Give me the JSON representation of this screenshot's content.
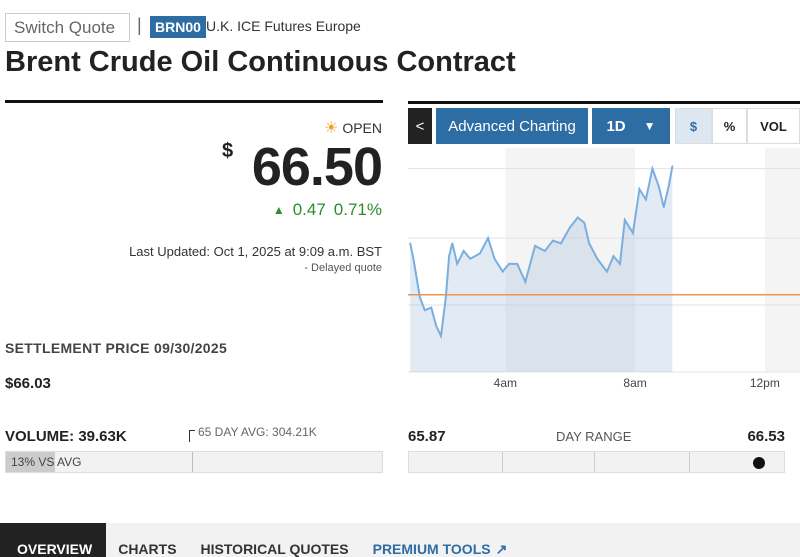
{
  "header": {
    "switch_quote_placeholder": "Switch Quote",
    "separator": "|",
    "symbol": "BRN00",
    "exchange": "U.K. ICE Futures Europe",
    "title": "Brent Crude Oil Continuous Contract"
  },
  "quote": {
    "status": "OPEN",
    "status_icon": "sun-icon",
    "currency": "$",
    "price": "66.50",
    "change": "0.47",
    "change_pct": "0.71%",
    "change_direction": "up",
    "last_updated": "Last Updated: Oct 1, 2025 at 9:09 a.m. BST",
    "delayed": "- Delayed quote",
    "settlement_label": "SETTLEMENT PRICE 09/30/2025",
    "settlement_value": "$66.03",
    "colors": {
      "positive": "#2e8b2e",
      "accent": "#2e6da4"
    }
  },
  "volume": {
    "label": "VOLUME: 39.63K",
    "avg_label": "65 DAY AVG: 304.21K",
    "vs_avg": "13% VS AVG",
    "vs_avg_fraction": 0.13
  },
  "day_range": {
    "low": "65.87",
    "label": "DAY RANGE",
    "high": "66.53",
    "current_fraction": 0.96
  },
  "chart_controls": {
    "back": "<",
    "advanced": "Advanced Charting",
    "range": "1D",
    "toggles": [
      "$",
      "%",
      "VOL"
    ],
    "active_toggle": "$"
  },
  "tabs": [
    {
      "label": "OVERVIEW",
      "active": true
    },
    {
      "label": "CHARTS"
    },
    {
      "label": "HISTORICAL QUOTES"
    },
    {
      "label": "PREMIUM TOOLS",
      "icon": "external-link-icon"
    }
  ],
  "chart_data": {
    "type": "line",
    "xlabel": "",
    "ylabel": "",
    "x_ticks": [
      "4am",
      "8am",
      "12pm"
    ],
    "x_range": [
      "01:00",
      "13:05"
    ],
    "ylim": [
      65.73,
      66.6
    ],
    "gridlines_y": [
      65.99,
      66.25,
      66.52
    ],
    "reference_line": {
      "value": 66.03,
      "color": "#e8965a"
    },
    "line_color": "#7aaee0",
    "x": [
      "01:04",
      "01:10",
      "01:22",
      "01:31",
      "01:43",
      "01:52",
      "02:01",
      "02:10",
      "02:16",
      "02:22",
      "02:31",
      "02:43",
      "02:55",
      "03:13",
      "03:28",
      "03:40",
      "03:55",
      "04:07",
      "04:22",
      "04:37",
      "04:55",
      "05:13",
      "05:28",
      "05:43",
      "05:59",
      "06:14",
      "06:26",
      "06:35",
      "06:50",
      "07:08",
      "07:20",
      "07:32",
      "07:41",
      "07:56",
      "08:08",
      "08:20",
      "08:32",
      "08:44",
      "08:53",
      "09:02",
      "09:09"
    ],
    "values": [
      66.23,
      66.17,
      66.02,
      65.97,
      65.98,
      65.91,
      65.87,
      66.02,
      66.18,
      66.23,
      66.15,
      66.2,
      66.17,
      66.19,
      66.25,
      66.17,
      66.12,
      66.15,
      66.15,
      66.08,
      66.22,
      66.2,
      66.24,
      66.23,
      66.29,
      66.33,
      66.31,
      66.23,
      66.17,
      66.12,
      66.18,
      66.15,
      66.32,
      66.27,
      66.44,
      66.4,
      66.52,
      66.45,
      66.37,
      66.45,
      66.53
    ]
  }
}
